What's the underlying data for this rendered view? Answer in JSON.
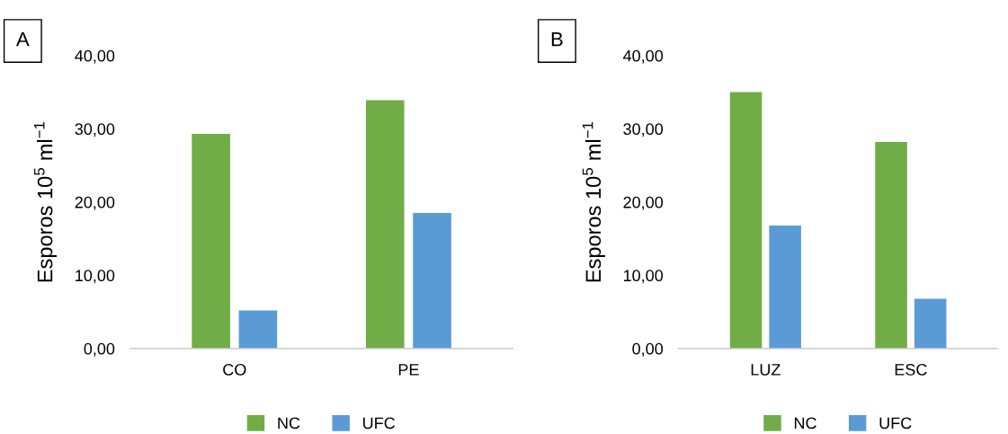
{
  "chart_data": [
    {
      "type": "bar",
      "categories": [
        "CO",
        "PE"
      ],
      "ylabel": "Esporos 10$^{5}$ ml$^{−1}$",
      "annotations": [
        "A"
      ],
      "series": [
        {
          "name": "NC",
          "color": "#70ad47",
          "values": [
            29.3,
            33.9
          ]
        },
        {
          "name": "UFC",
          "color": "#5b9bd5",
          "values": [
            5.2,
            18.5
          ]
        }
      ],
      "ylim": [
        0,
        40
      ],
      "yticks": [
        {
          "value": 0,
          "label": "0,00"
        },
        {
          "value": 10,
          "label": "10,00"
        },
        {
          "value": 20,
          "label": "20,00"
        },
        {
          "value": 30,
          "label": "30,00"
        },
        {
          "value": 40,
          "label": "40,00"
        }
      ],
      "grid": false,
      "legend": "bottom"
    },
    {
      "type": "bar",
      "categories": [
        "LUZ",
        "ESC"
      ],
      "ylabel": "Esporos 10$^{5}$ ml$^{−1}$",
      "annotations": [
        "B"
      ],
      "series": [
        {
          "name": "NC",
          "color": "#70ad47",
          "values": [
            35.0,
            28.2
          ]
        },
        {
          "name": "UFC",
          "color": "#5b9bd5",
          "values": [
            16.8,
            6.8
          ]
        }
      ],
      "ylim": [
        0,
        40
      ],
      "yticks": [
        {
          "value": 0,
          "label": "0,00"
        },
        {
          "value": 10,
          "label": "10,00"
        },
        {
          "value": 20,
          "label": "20,00"
        },
        {
          "value": 30,
          "label": "30,00"
        },
        {
          "value": 40,
          "label": "40,00"
        }
      ],
      "grid": false,
      "legend": "bottom"
    }
  ]
}
